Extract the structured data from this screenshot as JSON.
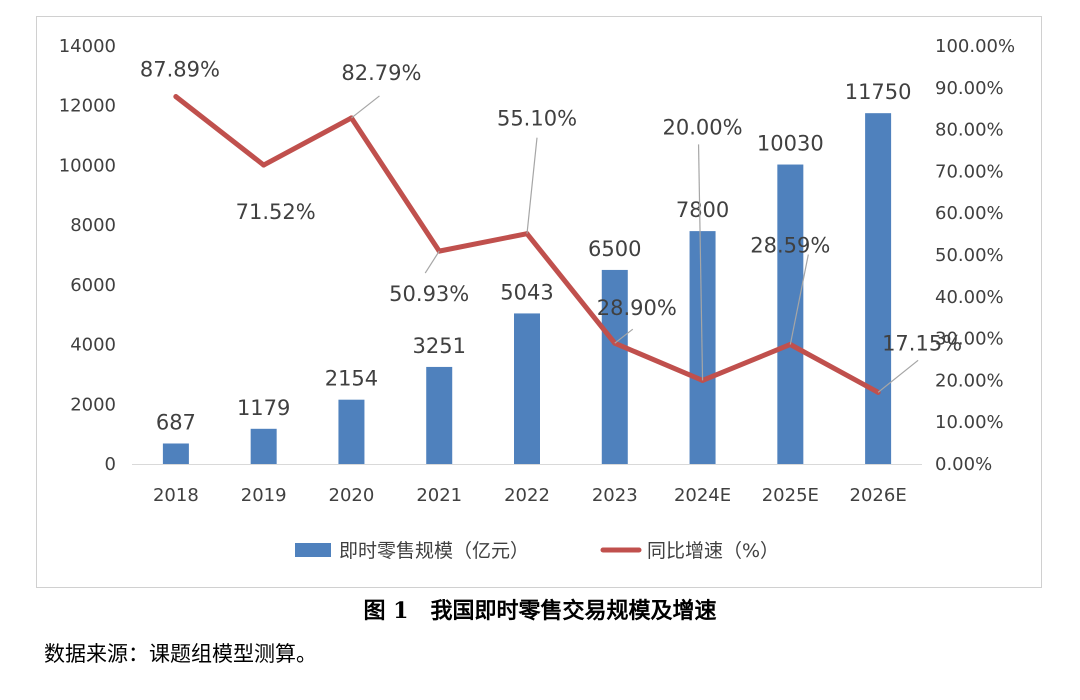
{
  "figure": {
    "caption": "图 1　我国即时零售交易规模及增速",
    "source": "数据来源：课题组模型测算。"
  },
  "chart_data": {
    "type": "bar",
    "categories": [
      "2018",
      "2019",
      "2020",
      "2021",
      "2022",
      "2023",
      "2024E",
      "2025E",
      "2026E"
    ],
    "series": [
      {
        "name": "即时零售规模（亿元）",
        "type": "bar",
        "axis": "left",
        "color": "#4f81bd",
        "values": [
          687,
          1179,
          2154,
          3251,
          5043,
          6500,
          7800,
          10030,
          11750
        ],
        "labels": [
          "687",
          "1179",
          "2154",
          "3251",
          "5043",
          "6500",
          "7800",
          "10030",
          "11750"
        ]
      },
      {
        "name": "同比增速（%）",
        "type": "line",
        "axis": "right",
        "color": "#c0504d",
        "values": [
          87.89,
          71.52,
          82.79,
          50.93,
          55.1,
          28.9,
          20.0,
          28.59,
          17.15
        ],
        "labels": [
          "87.89%",
          "71.52%",
          "82.79%",
          "50.93%",
          "55.10%",
          "28.90%",
          "20.00%",
          "28.59%",
          "17.15%"
        ]
      }
    ],
    "left_axis": {
      "ylim": [
        0,
        14000
      ],
      "ticks": [
        "0",
        "2000",
        "4000",
        "6000",
        "8000",
        "10000",
        "12000",
        "14000"
      ]
    },
    "right_axis": {
      "ylim": [
        0,
        100
      ],
      "ticks": [
        "0.00%",
        "10.00%",
        "20.00%",
        "30.00%",
        "40.00%",
        "50.00%",
        "60.00%",
        "70.00%",
        "80.00%",
        "90.00%",
        "100.00%"
      ]
    },
    "grid": false,
    "legend": "bottom-center"
  }
}
